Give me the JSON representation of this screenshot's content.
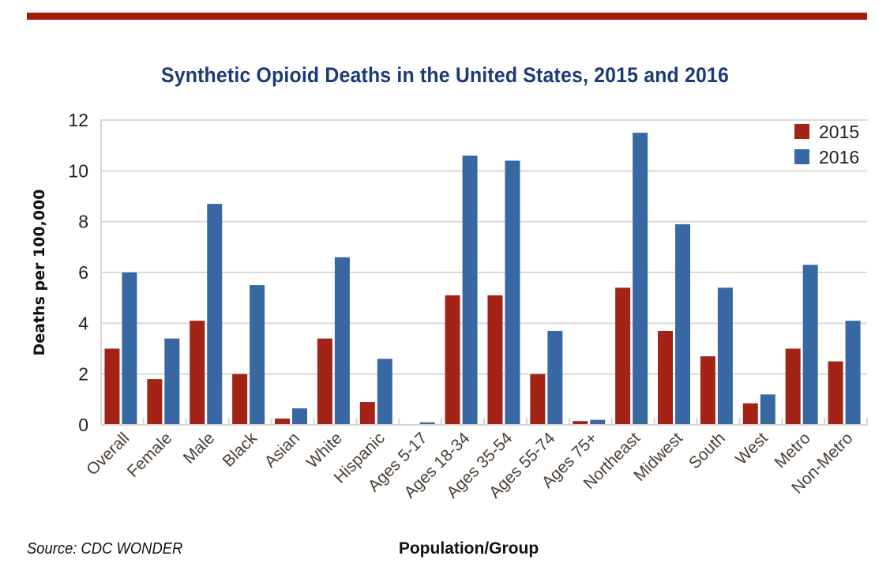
{
  "header": {
    "title": "Synthetic Opioid Deaths in the United States, 2015 and 2016",
    "accent_color": "#a31b0c"
  },
  "footer": {
    "source": "Source: CDC WONDER"
  },
  "chart_data": {
    "type": "bar",
    "title": "Synthetic Opioid Deaths in the United States, 2015 and 2016",
    "xlabel": "Population/Group",
    "ylabel": "Deaths per 100,000",
    "ylim": [
      0,
      12
    ],
    "yticks": [
      0,
      2,
      4,
      6,
      8,
      10,
      12
    ],
    "grid": true,
    "legend_position": "top-right",
    "categories": [
      "Overall",
      "Female",
      "Male",
      "Black",
      "Asian",
      "White",
      "Hispanic",
      "Ages 5-17",
      "Ages 18-34",
      "Ages 35-54",
      "Ages 55-74",
      "Ages 75+",
      "Northeast",
      "Midwest",
      "South",
      "West",
      "Metro",
      "Non-Metro"
    ],
    "series": [
      {
        "name": "2015",
        "color": "#a32416",
        "values": [
          3.0,
          1.8,
          4.1,
          2.0,
          0.25,
          3.4,
          0.9,
          0.03,
          5.1,
          5.1,
          2.0,
          0.15,
          5.4,
          3.7,
          2.7,
          0.85,
          3.0,
          2.5
        ]
      },
      {
        "name": "2016",
        "color": "#3768a3",
        "values": [
          6.0,
          3.4,
          8.7,
          5.5,
          0.65,
          6.6,
          2.6,
          0.1,
          10.6,
          10.4,
          3.7,
          0.2,
          11.5,
          7.9,
          5.4,
          1.2,
          6.3,
          4.1
        ]
      }
    ]
  }
}
